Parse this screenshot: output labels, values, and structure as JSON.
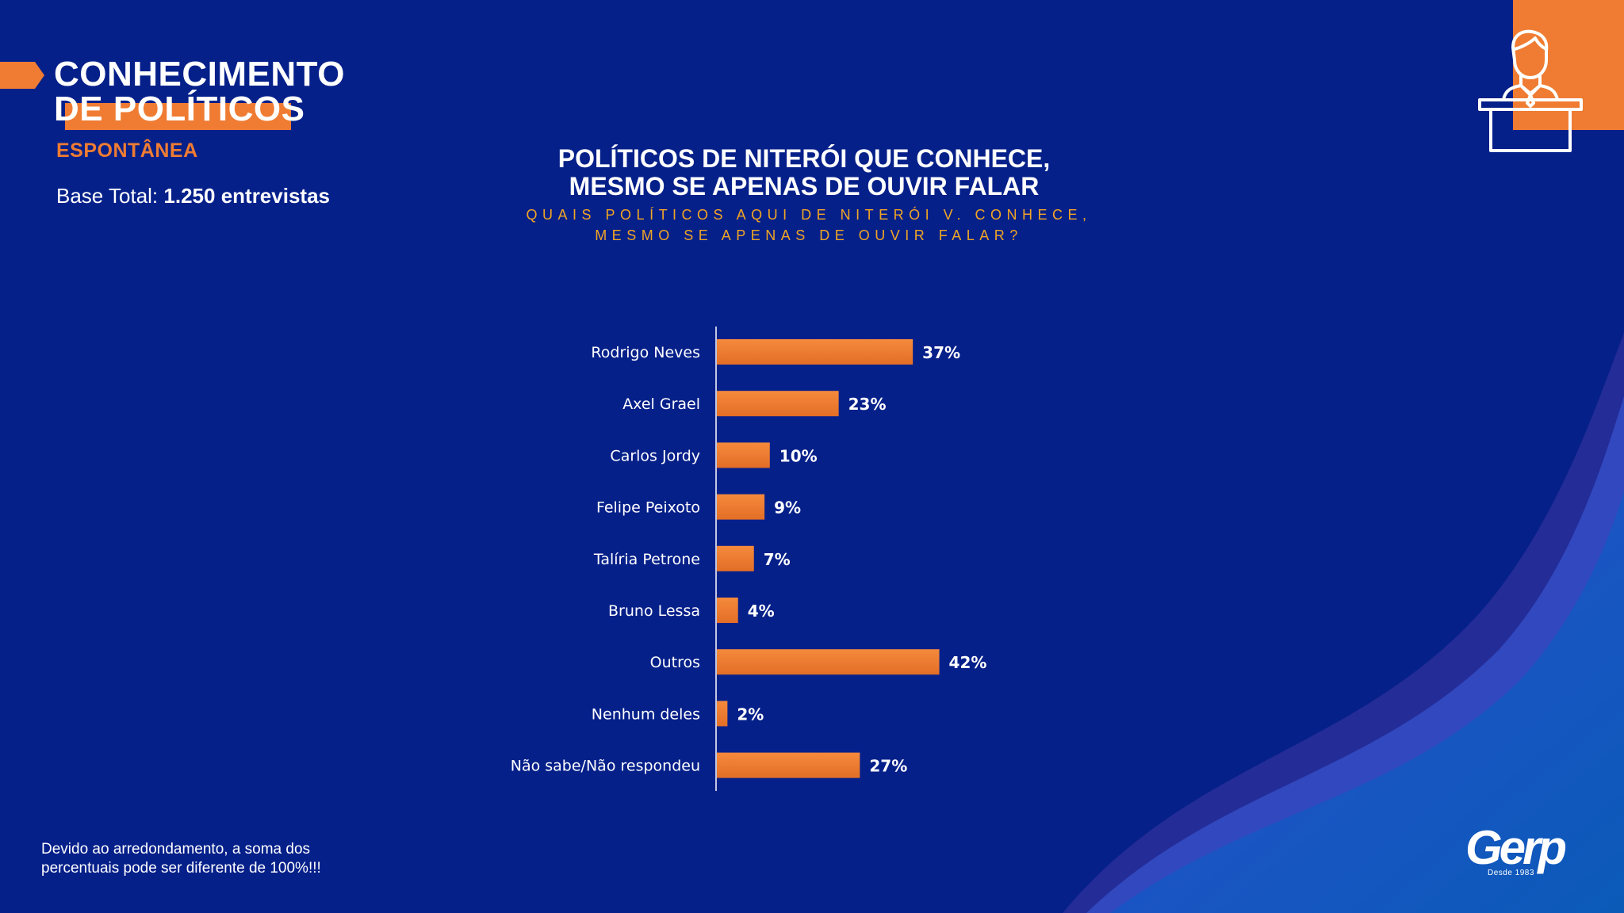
{
  "header": {
    "title_line1": "CONHECIMENTO",
    "title_line2": "DE POLÍTICOS",
    "subtitle": "ESPONTÂNEA",
    "base_label": "Base Total:",
    "base_value": "1.250 entrevistas"
  },
  "chart_title_line1": "POLÍTICOS DE NITERÓI QUE CONHECE,",
  "chart_title_line2": "MESMO SE APENAS DE OUVIR FALAR",
  "question_line1": "QUAIS POLÍTICOS AQUI DE NITERÓI V. CONHECE,",
  "question_line2": "MESMO SE APENAS DE OUVIR FALAR?",
  "footnote_line1": "Devido ao arredondamento, a soma dos",
  "footnote_line2": "percentuais pode ser diferente de 100%!!!",
  "logo": {
    "name": "Gerp",
    "tagline": "Desde 1983"
  },
  "icons": {
    "speaker": "speaker-at-podium-icon"
  },
  "colors": {
    "background": "#06208a",
    "accent": "#ef7c32",
    "question": "#f0a524",
    "text": "#ffffff"
  },
  "chart_data": {
    "type": "bar",
    "orientation": "horizontal",
    "categories": [
      "Rodrigo Neves",
      "Axel Grael",
      "Carlos Jordy",
      "Felipe Peixoto",
      "Talíria Petrone",
      "Bruno Lessa",
      "Outros",
      "Nenhum deles",
      "Não sabe/Não respondeu"
    ],
    "values": [
      37,
      23,
      10,
      9,
      7,
      4,
      42,
      2,
      27
    ],
    "value_labels": [
      "37%",
      "23%",
      "10%",
      "9%",
      "7%",
      "4%",
      "42%",
      "2%",
      "27%"
    ],
    "unit": "%",
    "xlim": [
      0,
      100
    ],
    "grid": false,
    "legend": "none",
    "bar_color": "#ef7c32"
  }
}
